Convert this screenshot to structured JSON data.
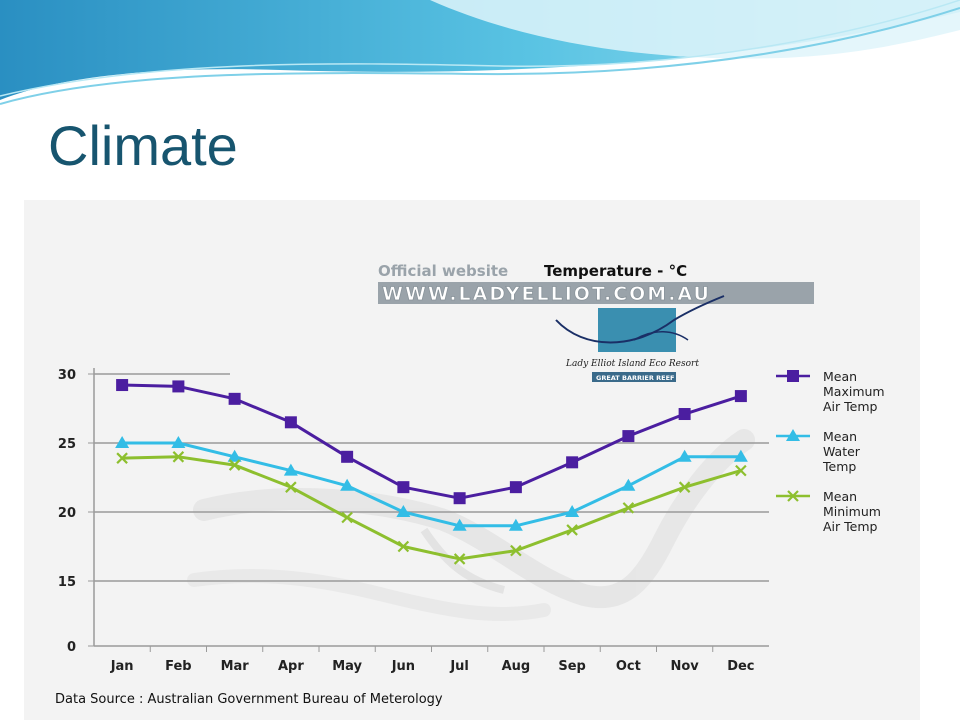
{
  "slide": {
    "title": "Climate"
  },
  "chart_header": {
    "official": "Official website",
    "title": "Temperature - °C",
    "url": "WWW.LADYELLIOT.COM.AU",
    "logo_caption": "Lady Elliot Island Eco Resort",
    "logo_sub": "GREAT BARRIER REEF"
  },
  "source": "Data Source : Australian Government Bureau of Meterology",
  "colors": {
    "max_air": "#4b1ea0",
    "water": "#33bde6",
    "min_air": "#8dbf2e",
    "title": "#17556f"
  },
  "chart_data": {
    "type": "line",
    "title": "Temperature - °C",
    "categories": [
      "Jan",
      "Feb",
      "Mar",
      "Apr",
      "May",
      "Jun",
      "Jul",
      "Aug",
      "Sep",
      "Oct",
      "Nov",
      "Dec"
    ],
    "yticks": [
      0,
      15,
      20,
      25,
      30
    ],
    "ylim": [
      0,
      30
    ],
    "y_axis_break": "15 to 0 compressed",
    "grid": true,
    "legend": "right",
    "series": [
      {
        "name": "Mean Maximum Air Temp",
        "legend_lines": [
          "Mean",
          "Maximum",
          "Air Temp"
        ],
        "marker": "square",
        "color": "#4b1ea0",
        "values": [
          29.2,
          29.1,
          28.2,
          26.5,
          24.0,
          21.8,
          21.0,
          21.8,
          23.6,
          25.5,
          27.1,
          28.4
        ]
      },
      {
        "name": "Mean Water Temp",
        "legend_lines": [
          "Mean",
          "Water",
          "Temp"
        ],
        "marker": "triangle",
        "color": "#33bde6",
        "values": [
          25.0,
          25.0,
          24.0,
          23.0,
          21.9,
          20.0,
          19.0,
          19.0,
          20.0,
          21.9,
          24.0,
          24.0
        ]
      },
      {
        "name": "Mean Minimum Air Temp",
        "legend_lines": [
          "Mean",
          "Minimum",
          "Air Temp"
        ],
        "marker": "cross",
        "color": "#8dbf2e",
        "values": [
          23.9,
          24.0,
          23.4,
          21.8,
          19.6,
          17.5,
          16.6,
          17.2,
          18.7,
          20.3,
          21.8,
          23.0
        ]
      }
    ]
  }
}
